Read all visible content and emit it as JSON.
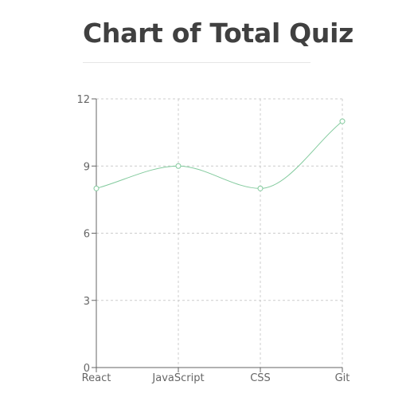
{
  "page": {
    "title": "Chart of Total Quiz"
  },
  "chart_data": {
    "type": "line",
    "title": "Chart of Total Quiz",
    "xlabel": "",
    "ylabel": "",
    "categories": [
      "React",
      "JavaScript",
      "CSS",
      "Git"
    ],
    "series": [
      {
        "values": [
          8,
          9,
          8,
          11
        ]
      }
    ],
    "ylim": [
      0,
      12
    ],
    "yticks": [
      0,
      3,
      6,
      9,
      12
    ],
    "grid": true,
    "legend": "none",
    "line_color": "#82ca9d",
    "grid_color": "#cccccc",
    "axis_color": "#666666"
  }
}
